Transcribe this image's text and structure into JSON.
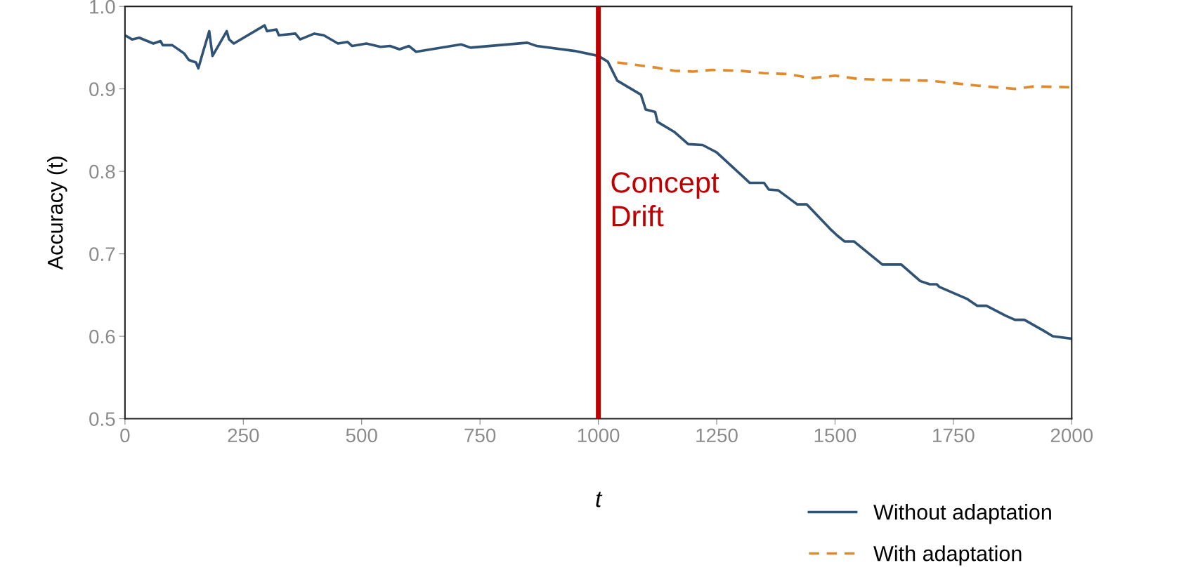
{
  "chart_data": {
    "type": "line",
    "xlabel": "t",
    "ylabel": "Accuracy (t)",
    "xlim": [
      0,
      2000
    ],
    "xticks": [
      0,
      250,
      500,
      750,
      1000,
      1250,
      1500,
      1750,
      2000
    ],
    "ylim": [
      0.5,
      1.0
    ],
    "yticks": [
      {
        "value": 0.5,
        "label": "0.5"
      },
      {
        "value": 0.6,
        "label": "0.6"
      },
      {
        "value": 0.7,
        "label": "0.7"
      },
      {
        "value": 0.8,
        "label": "0.8"
      },
      {
        "value": 0.9,
        "label": "0.9"
      },
      {
        "value": 1.0,
        "label": "1.0"
      }
    ],
    "grid": false,
    "legend": "bottom right",
    "marker": "none",
    "ref_lines": [
      {
        "axis": "x",
        "value": 1000,
        "label": "Concept\nDrift",
        "color": "#c00000",
        "line_style": "solid"
      }
    ],
    "series": [
      {
        "name": "Without adaptation",
        "color": "#2f5275",
        "line_style": "solid",
        "x": [
          0,
          15,
          30,
          60,
          75,
          80,
          100,
          125,
          135,
          150,
          155,
          165,
          178,
          185,
          215,
          220,
          230,
          295,
          300,
          320,
          325,
          360,
          370,
          400,
          420,
          450,
          470,
          480,
          510,
          540,
          560,
          580,
          600,
          615,
          710,
          730,
          850,
          870,
          950,
          1000,
          1020,
          1040,
          1090,
          1100,
          1120,
          1125,
          1160,
          1190,
          1220,
          1250,
          1320,
          1350,
          1360,
          1380,
          1420,
          1440,
          1490,
          1505,
          1520,
          1540,
          1600,
          1640,
          1680,
          1700,
          1715,
          1720,
          1780,
          1800,
          1820,
          1860,
          1880,
          1900,
          1940,
          1960,
          2000
        ],
        "values": [
          0.965,
          0.96,
          0.962,
          0.955,
          0.958,
          0.953,
          0.953,
          0.943,
          0.935,
          0.932,
          0.925,
          0.945,
          0.97,
          0.94,
          0.97,
          0.96,
          0.955,
          0.977,
          0.97,
          0.972,
          0.965,
          0.967,
          0.96,
          0.967,
          0.965,
          0.955,
          0.957,
          0.952,
          0.955,
          0.951,
          0.952,
          0.948,
          0.952,
          0.945,
          0.954,
          0.95,
          0.956,
          0.952,
          0.946,
          0.94,
          0.933,
          0.91,
          0.893,
          0.875,
          0.872,
          0.86,
          0.848,
          0.833,
          0.832,
          0.823,
          0.786,
          0.786,
          0.778,
          0.777,
          0.76,
          0.76,
          0.73,
          0.722,
          0.715,
          0.715,
          0.687,
          0.687,
          0.667,
          0.663,
          0.663,
          0.66,
          0.645,
          0.637,
          0.637,
          0.625,
          0.62,
          0.62,
          0.607,
          0.6,
          0.597
        ]
      },
      {
        "name": "With adaptation",
        "color": "#e08a2c",
        "line_style": "dashed",
        "x": [
          1040,
          1080,
          1120,
          1160,
          1200,
          1240,
          1300,
          1350,
          1400,
          1450,
          1500,
          1550,
          1600,
          1700,
          1750,
          1800,
          1880,
          1920,
          2000
        ],
        "values": [
          0.932,
          0.929,
          0.926,
          0.922,
          0.921,
          0.923,
          0.922,
          0.919,
          0.918,
          0.913,
          0.916,
          0.912,
          0.911,
          0.91,
          0.907,
          0.904,
          0.9,
          0.903,
          0.902
        ]
      }
    ]
  }
}
